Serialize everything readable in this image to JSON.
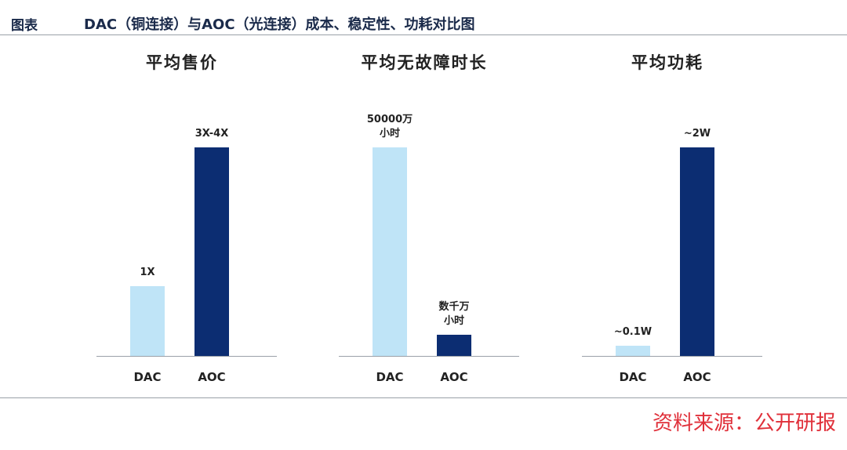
{
  "header": {
    "label": "图表",
    "title": "DAC（铜连接）与AOC（光连接）成本、稳定性、功耗对比图"
  },
  "chart_data": [
    {
      "type": "bar",
      "title": "平均售价",
      "categories": [
        "DAC",
        "AOC"
      ],
      "values": [
        1,
        3
      ],
      "value_labels": [
        "1X",
        "3X-4X"
      ],
      "colors": [
        "#bfe4f7",
        "#0c2d72"
      ],
      "ylim": [
        0,
        3
      ]
    },
    {
      "type": "bar",
      "title": "平均无故障时长",
      "categories": [
        "DAC",
        "AOC"
      ],
      "values": [
        50000,
        5000
      ],
      "value_labels": [
        "50000万\n小时",
        "数千万\n小时"
      ],
      "colors": [
        "#bfe4f7",
        "#0c2d72"
      ],
      "ylim": [
        0,
        50000
      ]
    },
    {
      "type": "bar",
      "title": "平均功耗",
      "categories": [
        "DAC",
        "AOC"
      ],
      "values": [
        0.1,
        2
      ],
      "value_labels": [
        "~0.1W",
        "~2W"
      ],
      "colors": [
        "#bfe4f7",
        "#0c2d72"
      ],
      "ylim": [
        0,
        2
      ]
    }
  ],
  "source": "资料来源：公开研报"
}
